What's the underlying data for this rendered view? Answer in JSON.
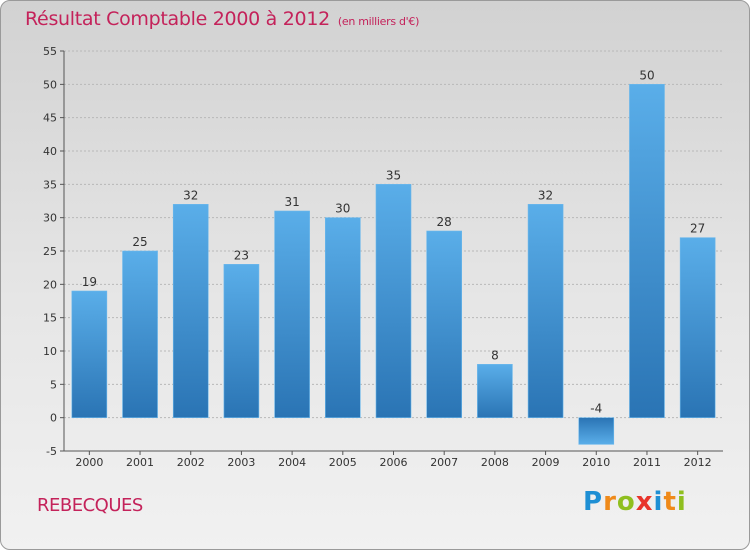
{
  "header": {
    "title": "Résultat Comptable 2000 à 2012",
    "subtitle": "(en milliers d'€)"
  },
  "footer": {
    "commune": "REBECQUES",
    "logo_letters": [
      "P",
      "r",
      "o",
      "x",
      "i",
      "t",
      "i"
    ],
    "logo_colors": [
      "#1e8fd4",
      "#ef8a1a",
      "#8fbf1f",
      "#e8342b",
      "#1e8fd4",
      "#ef8a1a",
      "#8fbf1f"
    ]
  },
  "chart_data": {
    "type": "bar",
    "title": "Résultat Comptable 2000 à 2012",
    "unit_note": "(en milliers d'€)",
    "categories": [
      "2000",
      "2001",
      "2002",
      "2003",
      "2004",
      "2005",
      "2006",
      "2007",
      "2008",
      "2009",
      "2010",
      "2011",
      "2012"
    ],
    "values": [
      19,
      25,
      32,
      23,
      31,
      30,
      35,
      28,
      8,
      32,
      -4,
      50,
      27
    ],
    "value_labels": [
      "19",
      "25",
      "32",
      "23",
      "31",
      "30",
      "35",
      "28",
      "8",
      "32",
      "-4",
      "50",
      "27"
    ],
    "ylim": [
      -5,
      55
    ],
    "yticks": [
      -5,
      0,
      5,
      10,
      15,
      20,
      25,
      30,
      35,
      40,
      45,
      50,
      55
    ],
    "grid": "horizontal dashed",
    "xlabel": "",
    "ylabel": "",
    "bar_color": "#3f96d8",
    "text_color": "#333333"
  }
}
